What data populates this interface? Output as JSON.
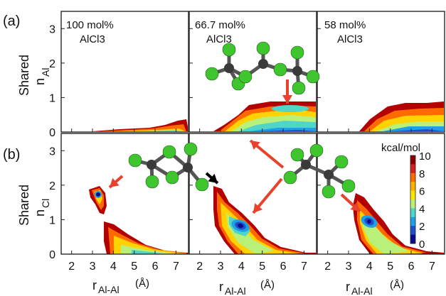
{
  "figure": {
    "row_labels": [
      "(a)",
      "(b)"
    ],
    "panels_a": [
      {
        "composition": "100 mol%",
        "species": "AlCl3"
      },
      {
        "composition": "66.7 mol%",
        "species": "AlCl3"
      },
      {
        "composition": "58 mol%",
        "species": "AlCl3"
      }
    ],
    "y_label_a": {
      "main": "Shared",
      "n": "n",
      "sub": "Al"
    },
    "y_label_b": {
      "main": "Shared",
      "n": "n",
      "sub": "Cl"
    },
    "x_label": {
      "r": "r",
      "sub": "Al-Al",
      "unit": "(Å)"
    },
    "colorbar": {
      "title": "kcal/mol",
      "ticks": [
        "10",
        "8",
        "6",
        "4",
        "2",
        "0"
      ],
      "colors": [
        "#8b0000",
        "#d62020",
        "#ff6a00",
        "#ffb000",
        "#ffe600",
        "#b8f07a",
        "#4fd6c8",
        "#1ea0e6",
        "#1f50c8",
        "#0a0a8c"
      ]
    },
    "arrow_colors": {
      "red": "#e8412c",
      "black": "#000000"
    },
    "molecule_colors": {
      "Cl": "#3fc62e",
      "Al": "#3a3a3a"
    }
  },
  "chart_data": [
    {
      "type": "heatmap",
      "panel": "a1",
      "xlim": [
        1.5,
        7.6
      ],
      "ylim": [
        0,
        3.5
      ],
      "x_ticks": [],
      "y_ticks": [
        "0",
        "1",
        "2",
        "3"
      ]
    },
    {
      "type": "heatmap",
      "panel": "a2",
      "xlim": [
        1.5,
        7.6
      ],
      "ylim": [
        0,
        3.5
      ],
      "x_ticks": [],
      "y_ticks": []
    },
    {
      "type": "heatmap",
      "panel": "a3",
      "xlim": [
        1.5,
        7.6
      ],
      "ylim": [
        0,
        3.5
      ],
      "x_ticks": [],
      "y_ticks": []
    },
    {
      "type": "heatmap",
      "panel": "b1",
      "xlim": [
        1.5,
        7.6
      ],
      "ylim": [
        0,
        3.5
      ],
      "x_ticks": [
        "2",
        "3",
        "4",
        "5",
        "6",
        "7"
      ],
      "y_ticks": [
        "0",
        "1",
        "2",
        "3"
      ]
    },
    {
      "type": "heatmap",
      "panel": "b2",
      "xlim": [
        1.5,
        7.6
      ],
      "ylim": [
        0,
        3.5
      ],
      "x_ticks": [
        "2",
        "3",
        "4",
        "5",
        "6",
        "7"
      ],
      "y_ticks": []
    },
    {
      "type": "heatmap",
      "panel": "b3",
      "xlim": [
        1.5,
        7.6
      ],
      "ylim": [
        0,
        3.5
      ],
      "x_ticks": [
        "2",
        "3",
        "4",
        "5",
        "6",
        "7"
      ],
      "y_ticks": []
    }
  ]
}
